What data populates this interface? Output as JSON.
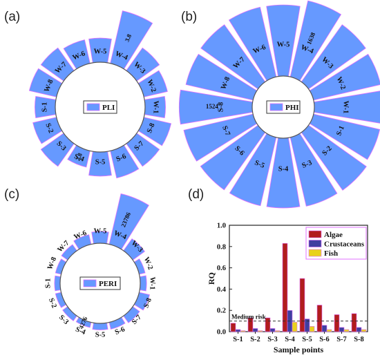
{
  "chart_data": [
    {
      "panel": "(a)",
      "type": "bar",
      "legend": "PLI",
      "categories": [
        "W-1",
        "W-2",
        "W-3",
        "W-4",
        "W-5",
        "W-6",
        "W-7",
        "W-8",
        "S-1",
        "S-2",
        "S-3",
        "S-4",
        "S-5",
        "S-6",
        "S-7",
        "S-8"
      ],
      "values": [
        2.9,
        3.0,
        3.1,
        3.8,
        3.0,
        3.0,
        3.1,
        3.1,
        2.9,
        3.0,
        3.1,
        2.8,
        3.0,
        3.1,
        3.1,
        3.1
      ],
      "data_labels": [
        {
          "category": "W-4",
          "text": "3.8"
        },
        {
          "category": "S-4",
          "text": "2.8"
        }
      ],
      "bar_color": "#6699ff"
    },
    {
      "panel": "(b)",
      "type": "bar",
      "legend": "PHI",
      "categories": [
        "W-1",
        "W-2",
        "W-3",
        "W-4",
        "W-5",
        "W-6",
        "W-7",
        "W-8",
        "S-8",
        "S-7",
        "S-6",
        "S-5",
        "S-4",
        "S-3",
        "S-2",
        "S-1"
      ],
      "values": [
        1400,
        1430,
        1460,
        1638,
        1480,
        1490,
        1460,
        1430,
        1524,
        1480,
        1470,
        1460,
        1450,
        1470,
        1480,
        1410
      ],
      "data_labels": [
        {
          "category": "W-4",
          "text": "1638"
        },
        {
          "category": "S-8",
          "text": "1524"
        }
      ],
      "bar_color": "#6699ff"
    },
    {
      "panel": "(c)",
      "type": "bar",
      "legend": "PERI",
      "categories": [
        "W-1",
        "W-2",
        "W-3",
        "W-4",
        "W-5",
        "W-6",
        "W-7",
        "W-8",
        "S-1",
        "S-2",
        "S-3",
        "S-4",
        "S-5",
        "S-6",
        "S-7",
        "S-8"
      ],
      "values": [
        4700,
        4600,
        8200,
        23786,
        7000,
        6200,
        5200,
        4500,
        4400,
        4500,
        4600,
        4276,
        4800,
        5000,
        5600,
        6500
      ],
      "data_labels": [
        {
          "category": "W-4",
          "text": "23786"
        },
        {
          "category": "S-4",
          "text": "4276"
        }
      ],
      "bar_color": "#6699ff"
    },
    {
      "panel": "(d)",
      "type": "bar",
      "categories": [
        "S-1",
        "S-2",
        "S-3",
        "S-4",
        "S-5",
        "S-6",
        "S-7",
        "S-8"
      ],
      "series": [
        {
          "name": "Algae",
          "values": [
            0.08,
            0.13,
            0.13,
            0.83,
            0.5,
            0.25,
            0.16,
            0.17
          ],
          "color": "#b11d1d"
        },
        {
          "name": "Crustaceans",
          "values": [
            0.02,
            0.03,
            0.03,
            0.2,
            0.12,
            0.06,
            0.04,
            0.04
          ],
          "color": "#3f3f9f"
        },
        {
          "name": "Fish",
          "values": [
            0.01,
            0.01,
            0.01,
            0.09,
            0.05,
            0.02,
            0.02,
            0.02
          ],
          "color": "#e8d21c"
        }
      ],
      "ylim": [
        0,
        1.0
      ],
      "yticks": [
        "0.0",
        "0.2",
        "0.4",
        "0.6",
        "0.8",
        "1.0"
      ],
      "ylabel": "RQ",
      "xlabel": "Sample points",
      "reference_line": {
        "label": "Medium risk",
        "value": 0.1,
        "style": "dashed"
      },
      "legend_position": "top-right"
    }
  ]
}
